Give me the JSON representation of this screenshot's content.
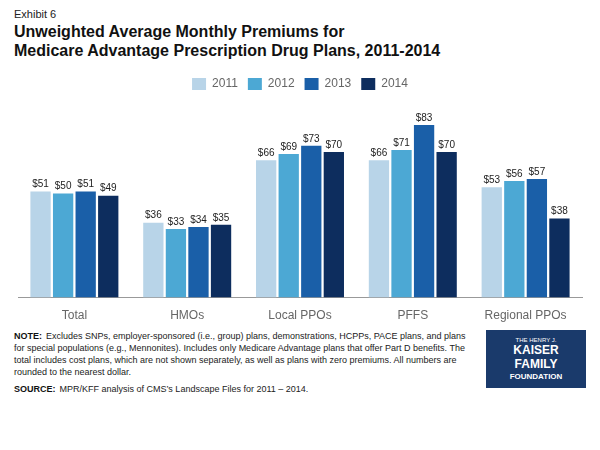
{
  "chart_data": {
    "type": "bar",
    "title": [
      "Unweighted Average Monthly Premiums for",
      "Medicare Advantage Prescription Drug Plans, 2011-2014"
    ],
    "annotations": [
      "Exhibit 6",
      "NOTE:",
      "Excludes SNPs, employer-sponsored (i.e., group) plans, demonstrations, HCPPs, PACE plans, and plans for special populations (e.g., Mennonites).  Includes only Medicare Advantage plans that offer Part D benefits. The total includes cost plans, which are not shown separately, as well as plans with zero premiums.  All numbers are rounded to the nearest dollar.",
      "SOURCE:",
      "MPR/KFF analysis of CMS’s Landscape Files for 2011 – 2014.",
      "THE HENRY J.",
      "KAISER",
      "FAMILY",
      "FOUNDATION"
    ],
    "categories": [
      "Total",
      "HMOs",
      "Local PPOs",
      "PFFS",
      "Regional PPOs"
    ],
    "series": [
      {
        "name": "2011",
        "color": "#b8d4e8",
        "values": [
          51,
          36,
          66,
          66,
          53
        ],
        "value_labels": [
          "$51",
          "$36",
          "$66",
          "$66",
          "$53"
        ]
      },
      {
        "name": "2012",
        "color": "#4ca8d4",
        "values": [
          50,
          33,
          69,
          71,
          56
        ],
        "value_labels": [
          "$50",
          "$33",
          "$69",
          "$71",
          "$56"
        ]
      },
      {
        "name": "2013",
        "color": "#1a5fa8",
        "values": [
          51,
          34,
          73,
          83,
          57
        ],
        "value_labels": [
          "$51",
          "$34",
          "$73",
          "$83",
          "$57"
        ]
      },
      {
        "name": "2014",
        "color": "#0d2d5e",
        "values": [
          49,
          35,
          70,
          70,
          38
        ],
        "value_labels": [
          "$49",
          "$35",
          "$70",
          "$70",
          "$38"
        ]
      }
    ],
    "ylim": [
      0,
      95
    ],
    "grid": false,
    "legend": "top",
    "data_labels": true,
    "tick_labels": "x"
  }
}
